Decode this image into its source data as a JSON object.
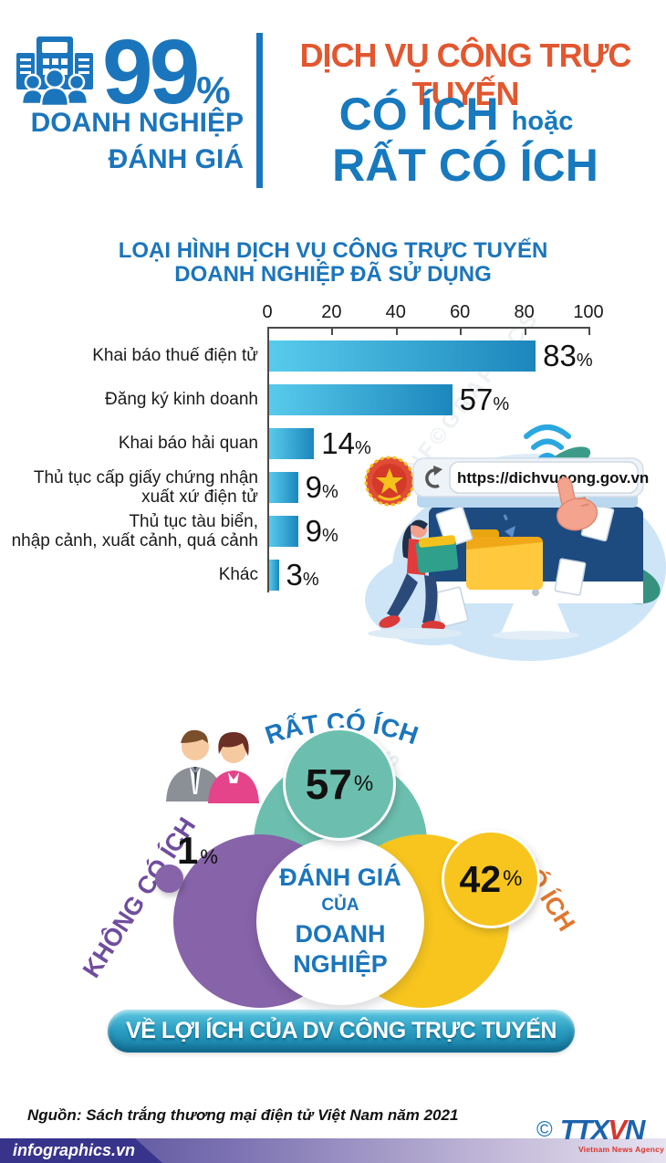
{
  "header": {
    "stat_value": "99",
    "stat_unit": "%",
    "stat_label_1": "DOANH NGHIỆP",
    "stat_label_2": "ĐÁNH GIÁ",
    "title_top": "DỊCH VỤ CÔNG TRỰC TUYẾN",
    "emphasis_1": "CÓ ÍCH",
    "conjunction": "hoặc",
    "emphasis_2": "RẤT CÓ ÍCH"
  },
  "bar_chart": {
    "title_line1": "LOẠI HÌNH DỊCH VỤ CÔNG TRỰC TUYẾN",
    "title_line2": "DOANH NGHIỆP ĐÃ SỬ DỤNG",
    "ticks": [
      "0",
      "20",
      "40",
      "60",
      "80",
      "100"
    ],
    "pct": "%",
    "bars": [
      {
        "label": "Khai báo thuế điện tử",
        "value": 83,
        "display": "83"
      },
      {
        "label": "Đăng ký kinh doanh",
        "value": 57,
        "display": "57"
      },
      {
        "label": "Khai báo hải quan",
        "value": 14,
        "display": "14"
      },
      {
        "label": "Thủ tục cấp giấy chứng nhận\nxuất xứ điện tử",
        "value": 9,
        "display": "9"
      },
      {
        "label": "Thủ tục tàu biển,\nnhập cảnh, xuất cảnh, quá cảnh",
        "value": 9,
        "display": "9"
      },
      {
        "label": "Khác",
        "value": 3,
        "display": "3"
      }
    ]
  },
  "illustration": {
    "url": "https://dichvucong.gov.vn"
  },
  "venn": {
    "top_label": "RẤT CÓ ÍCH",
    "top_value": "57",
    "right_label": "CÓ ÍCH",
    "right_value": "42",
    "left_label": "KHÔNG CÓ ÍCH",
    "left_value": "1",
    "pct": "%",
    "center_line1": "ĐÁNH GIÁ",
    "center_line2": "CỦA",
    "center_line3": "DOANH",
    "center_line4": "NGHIỆP",
    "banner": "VỀ LỢI ÍCH CỦA DV CÔNG TRỰC TUYẾN"
  },
  "footer": {
    "source": "Nguồn: Sách trắng thương mại điện tử Việt Nam năm 2021",
    "site": "infographics.vn",
    "copyright": "©",
    "agency_part1": "TTX",
    "agency_part2": "V",
    "agency_part3": "N",
    "agency_sub": "Vietnam News Agency"
  },
  "watermark": "INF©GRAPHICS",
  "colors": {
    "blue": "#1b75bc",
    "orange": "#e2572f",
    "bar_gradient_from": "#58cbec",
    "bar_gradient_to": "#1c86bc",
    "teal": "#6cbfae",
    "yellow": "#f7c51d",
    "purple": "#8763a9"
  },
  "chart_data": [
    {
      "type": "bar",
      "orientation": "horizontal",
      "title": "LOẠI HÌNH DỊCH VỤ CÔNG TRỰC TUYẾN DOANH NGHIỆP ĐÃ SỬ DỤNG",
      "categories": [
        "Khai báo thuế điện tử",
        "Đăng ký kinh doanh",
        "Khai báo hải quan",
        "Thủ tục cấp giấy chứng nhận xuất xứ điện tử",
        "Thủ tục tàu biển, nhập cảnh, xuất cảnh, quá cảnh",
        "Khác"
      ],
      "values": [
        83,
        57,
        14,
        9,
        9,
        3
      ],
      "unit": "%",
      "xlim": [
        0,
        100
      ],
      "x_ticks": [
        0,
        20,
        40,
        60,
        80,
        100
      ],
      "grid": false,
      "legend": false
    },
    {
      "type": "pie",
      "title": "ĐÁNH GIÁ CỦA DOANH NGHIỆP VỀ LỢI ÍCH CỦA DV CÔNG TRỰC TUYẾN",
      "categories": [
        "RẤT CÓ ÍCH",
        "CÓ ÍCH",
        "KHÔNG CÓ ÍCH"
      ],
      "values": [
        57,
        42,
        1
      ],
      "unit": "%",
      "colors": [
        "#6cbfae",
        "#f7c51d",
        "#8763a9"
      ]
    }
  ]
}
